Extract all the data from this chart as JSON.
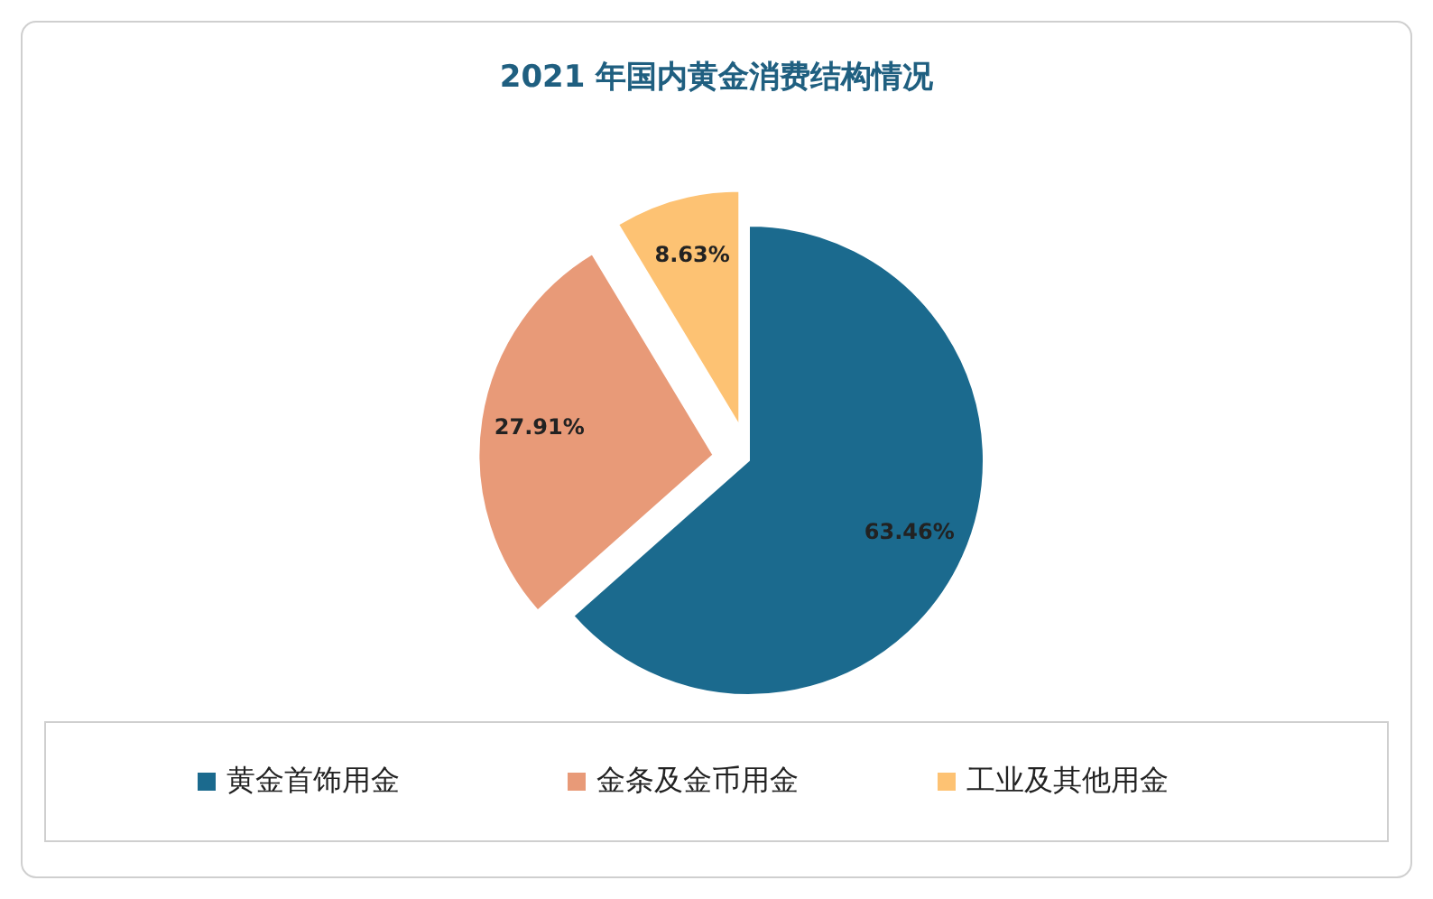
{
  "chart_data": {
    "type": "pie",
    "title": "2021 年国内黄金消费结构情况",
    "categories": [
      "黄金首饰用金",
      "金条及金币用金",
      "工业及其他用金"
    ],
    "values": [
      63.46,
      27.91,
      8.63
    ],
    "colors": [
      "#1b6a8e",
      "#e89a78",
      "#fdc273"
    ],
    "value_labels": [
      "63.46%",
      "27.91%",
      "8.63%"
    ],
    "legend": "bottom"
  }
}
